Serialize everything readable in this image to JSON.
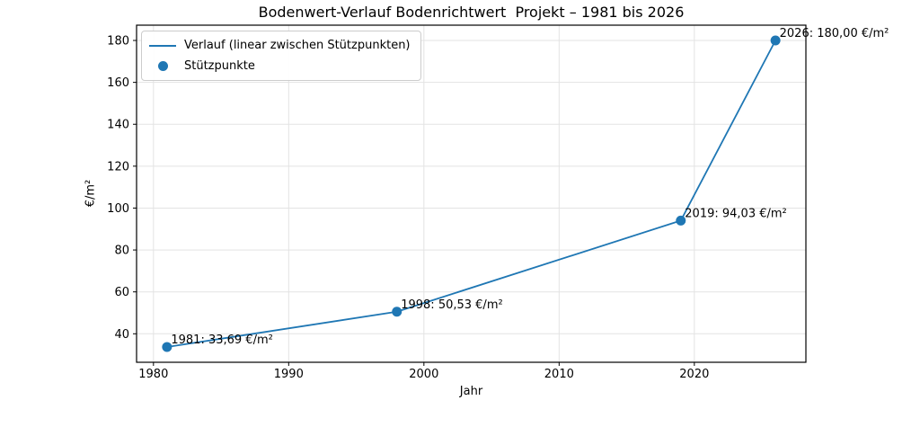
{
  "chart_data": {
    "type": "line",
    "title": "Bodenwert-Verlauf Bodenrichtwert  Projekt – 1981 bis 2026",
    "xlabel": "Jahr",
    "ylabel": "€/m²",
    "x": [
      1981,
      1998,
      2019,
      2026
    ],
    "y": [
      33.69,
      50.53,
      94.03,
      180.0
    ],
    "points": [
      {
        "x": 1981,
        "y": 33.69,
        "label": "1981: 33,69 €/m²"
      },
      {
        "x": 1998,
        "y": 50.53,
        "label": "1998: 50,53 €/m²"
      },
      {
        "x": 2019,
        "y": 94.03,
        "label": "2019: 94,03 €/m²"
      },
      {
        "x": 2026,
        "y": 180.0,
        "label": "2026: 180,00 €/m²"
      }
    ],
    "xlim": [
      1978.75,
      2028.25
    ],
    "ylim": [
      26.4,
      187.3
    ],
    "xticks": [
      1980,
      1990,
      2000,
      2010,
      2020
    ],
    "yticks": [
      40,
      60,
      80,
      100,
      120,
      140,
      160,
      180
    ],
    "grid": true,
    "legend": {
      "position": "upper left",
      "entries": [
        {
          "label": "Verlauf (linear zwischen Stützpunkten)",
          "type": "line"
        },
        {
          "label": "Stützpunkte",
          "type": "marker"
        }
      ]
    },
    "colors": {
      "line": "#1f77b4",
      "marker": "#1f77b4",
      "grid": "#e3e3e3",
      "spine": "#000000",
      "text": "#000000",
      "legend_border": "#cccccc",
      "background": "#ffffff"
    }
  }
}
